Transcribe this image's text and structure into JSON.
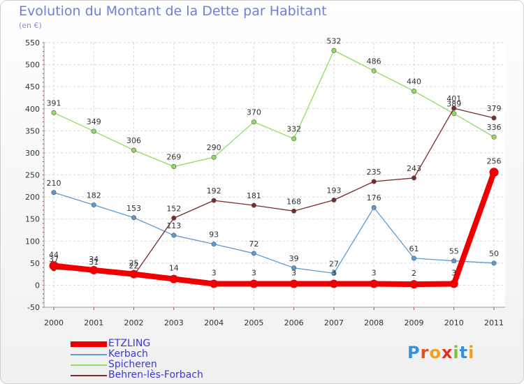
{
  "title": "Evolution du Montant de la Dette par Habitant",
  "unit": "(en €)",
  "logo": {
    "text": "Proxiti",
    "letters": [
      "P",
      "r",
      "o",
      "x",
      "i",
      "t",
      "i"
    ],
    "letter_colors": [
      "#3b8fd6",
      "#e0501f",
      "#f0a020",
      "#e03020",
      "#7cc03c",
      "#3b8fd6",
      "#f0a020"
    ]
  },
  "chart_data": {
    "type": "line",
    "title": "Evolution du Montant de la Dette par Habitant",
    "ylabel": "(en €)",
    "ylim": [
      -50,
      550
    ],
    "ytick_step": 50,
    "yticks": [
      "-50",
      "0",
      "50",
      "100",
      "150",
      "200",
      "250",
      "300",
      "350",
      "400",
      "450",
      "500",
      "550"
    ],
    "grid": true,
    "legend_position": "bottom-left",
    "categories": [
      "2000",
      "2001",
      "2002",
      "2003",
      "2004",
      "2005",
      "2006",
      "2007",
      "2008",
      "2009",
      "2010",
      "2011"
    ],
    "series": [
      {
        "name": "ETZLING",
        "color": "#ee0000",
        "emphasis": true,
        "values": [
          44,
          34,
          25,
          14,
          3,
          3,
          3,
          3,
          3,
          2,
          3,
          256
        ]
      },
      {
        "name": "Kerbach",
        "color": "#5b9bd5",
        "emphasis": false,
        "values": [
          210,
          182,
          153,
          113,
          93,
          72,
          39,
          27,
          176,
          61,
          55,
          50
        ]
      },
      {
        "name": "Spicheren",
        "color": "#90dd60",
        "emphasis": false,
        "values": [
          391,
          349,
          306,
          269,
          290,
          370,
          332,
          532,
          486,
          440,
          389,
          336
        ]
      },
      {
        "name": "Behren-lès-Forbach",
        "color": "#7a2a2a",
        "emphasis": false,
        "values": [
          37,
          31,
          22,
          152,
          192,
          181,
          168,
          193,
          235,
          243,
          401,
          379
        ]
      }
    ]
  }
}
